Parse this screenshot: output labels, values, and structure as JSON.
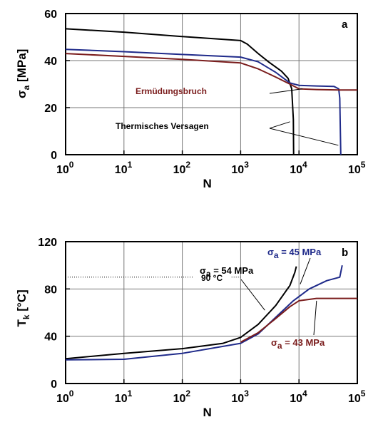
{
  "chart_data": [
    {
      "type": "line",
      "panel_label": "a",
      "x_scale": "log",
      "xlabel": "N",
      "ylabel_symbol": "σ",
      "ylabel_sub": "a",
      "ylabel_unit": "[MPa]",
      "xlim": [
        1,
        100000
      ],
      "ylim": [
        0,
        60
      ],
      "x_tick_mantissa": "10",
      "x_tick_exponents": [
        "0",
        "1",
        "2",
        "3",
        "4",
        "5"
      ],
      "y_ticks": [
        "0",
        "20",
        "40",
        "60"
      ],
      "grid": true,
      "series": [
        {
          "color": "#000000",
          "points": [
            [
              1,
              53.5
            ],
            [
              10,
              52.1
            ],
            [
              100,
              50.2
            ],
            [
              1000,
              48.5
            ],
            [
              1300,
              47.0
            ],
            [
              2000,
              43.0
            ],
            [
              3000,
              39.5
            ],
            [
              5000,
              35.5
            ],
            [
              6500,
              32.5
            ],
            [
              7500,
              28.0
            ],
            [
              8000,
              15.0
            ],
            [
              8100,
              0
            ]
          ]
        },
        {
          "color": "#1f2a8a",
          "points": [
            [
              1,
              44.8
            ],
            [
              10,
              43.8
            ],
            [
              100,
              42.6
            ],
            [
              1000,
              41.5
            ],
            [
              2000,
              39.5
            ],
            [
              4000,
              35.0
            ],
            [
              7000,
              30.5
            ],
            [
              10000,
              29.5
            ],
            [
              20000,
              29.2
            ],
            [
              40000,
              29.0
            ],
            [
              48000,
              28.0
            ],
            [
              50000,
              24.0
            ],
            [
              52000,
              0
            ]
          ]
        },
        {
          "color": "#7a1c1c",
          "points": [
            [
              1,
              43.0
            ],
            [
              10,
              41.8
            ],
            [
              100,
              40.5
            ],
            [
              1000,
              39.0
            ],
            [
              2000,
              36.5
            ],
            [
              4000,
              33.0
            ],
            [
              7000,
              30.0
            ],
            [
              10000,
              28.0
            ],
            [
              20000,
              27.7
            ],
            [
              50000,
              27.5
            ],
            [
              100000,
              27.5
            ]
          ]
        }
      ],
      "annotations": [
        {
          "text": "Ermüdungsbruch",
          "color": "#7a1c1c"
        },
        {
          "text": "Thermisches Versagen",
          "color": "#000000"
        }
      ]
    },
    {
      "type": "line",
      "panel_label": "b",
      "x_scale": "log",
      "xlabel": "N",
      "ylabel_main": "T",
      "ylabel_sub": "k",
      "ylabel_unit": "[°C]",
      "xlim": [
        1,
        100000
      ],
      "ylim": [
        0,
        120
      ],
      "x_tick_mantissa": "10",
      "x_tick_exponents": [
        "0",
        "1",
        "2",
        "3",
        "4",
        "5"
      ],
      "y_ticks": [
        "0",
        "40",
        "80",
        "120"
      ],
      "grid": true,
      "reference_line": {
        "y": 90,
        "text": "90 °C"
      },
      "series": [
        {
          "color": "#000000",
          "label_symbol": "σ",
          "label_sub": "a",
          "label_value": " = 54 MPa",
          "points": [
            [
              1,
              21
            ],
            [
              10,
              25.5
            ],
            [
              100,
              29.5
            ],
            [
              500,
              34
            ],
            [
              1000,
              39
            ],
            [
              2000,
              50
            ],
            [
              4000,
              66
            ],
            [
              7000,
              83
            ],
            [
              8500,
              94
            ],
            [
              9000,
              99
            ]
          ]
        },
        {
          "color": "#1f2a8a",
          "label_symbol": "σ",
          "label_sub": "a",
          "label_value": " = 45 MPa",
          "points": [
            [
              1,
              20
            ],
            [
              10,
              20.5
            ],
            [
              100,
              25.5
            ],
            [
              1000,
              34
            ],
            [
              2000,
              42
            ],
            [
              4000,
              56
            ],
            [
              8000,
              70
            ],
            [
              15000,
              80
            ],
            [
              30000,
              87
            ],
            [
              50000,
              90
            ],
            [
              55000,
              100
            ]
          ]
        },
        {
          "color": "#7a1c1c",
          "label_symbol": "σ",
          "label_sub": "a",
          "label_value": " = 43 MPa",
          "points": [
            [
              1000,
              35
            ],
            [
              2000,
              43
            ],
            [
              4000,
              55
            ],
            [
              7000,
              65
            ],
            [
              10000,
              70
            ],
            [
              20000,
              72
            ],
            [
              100000,
              72
            ]
          ]
        }
      ]
    }
  ]
}
